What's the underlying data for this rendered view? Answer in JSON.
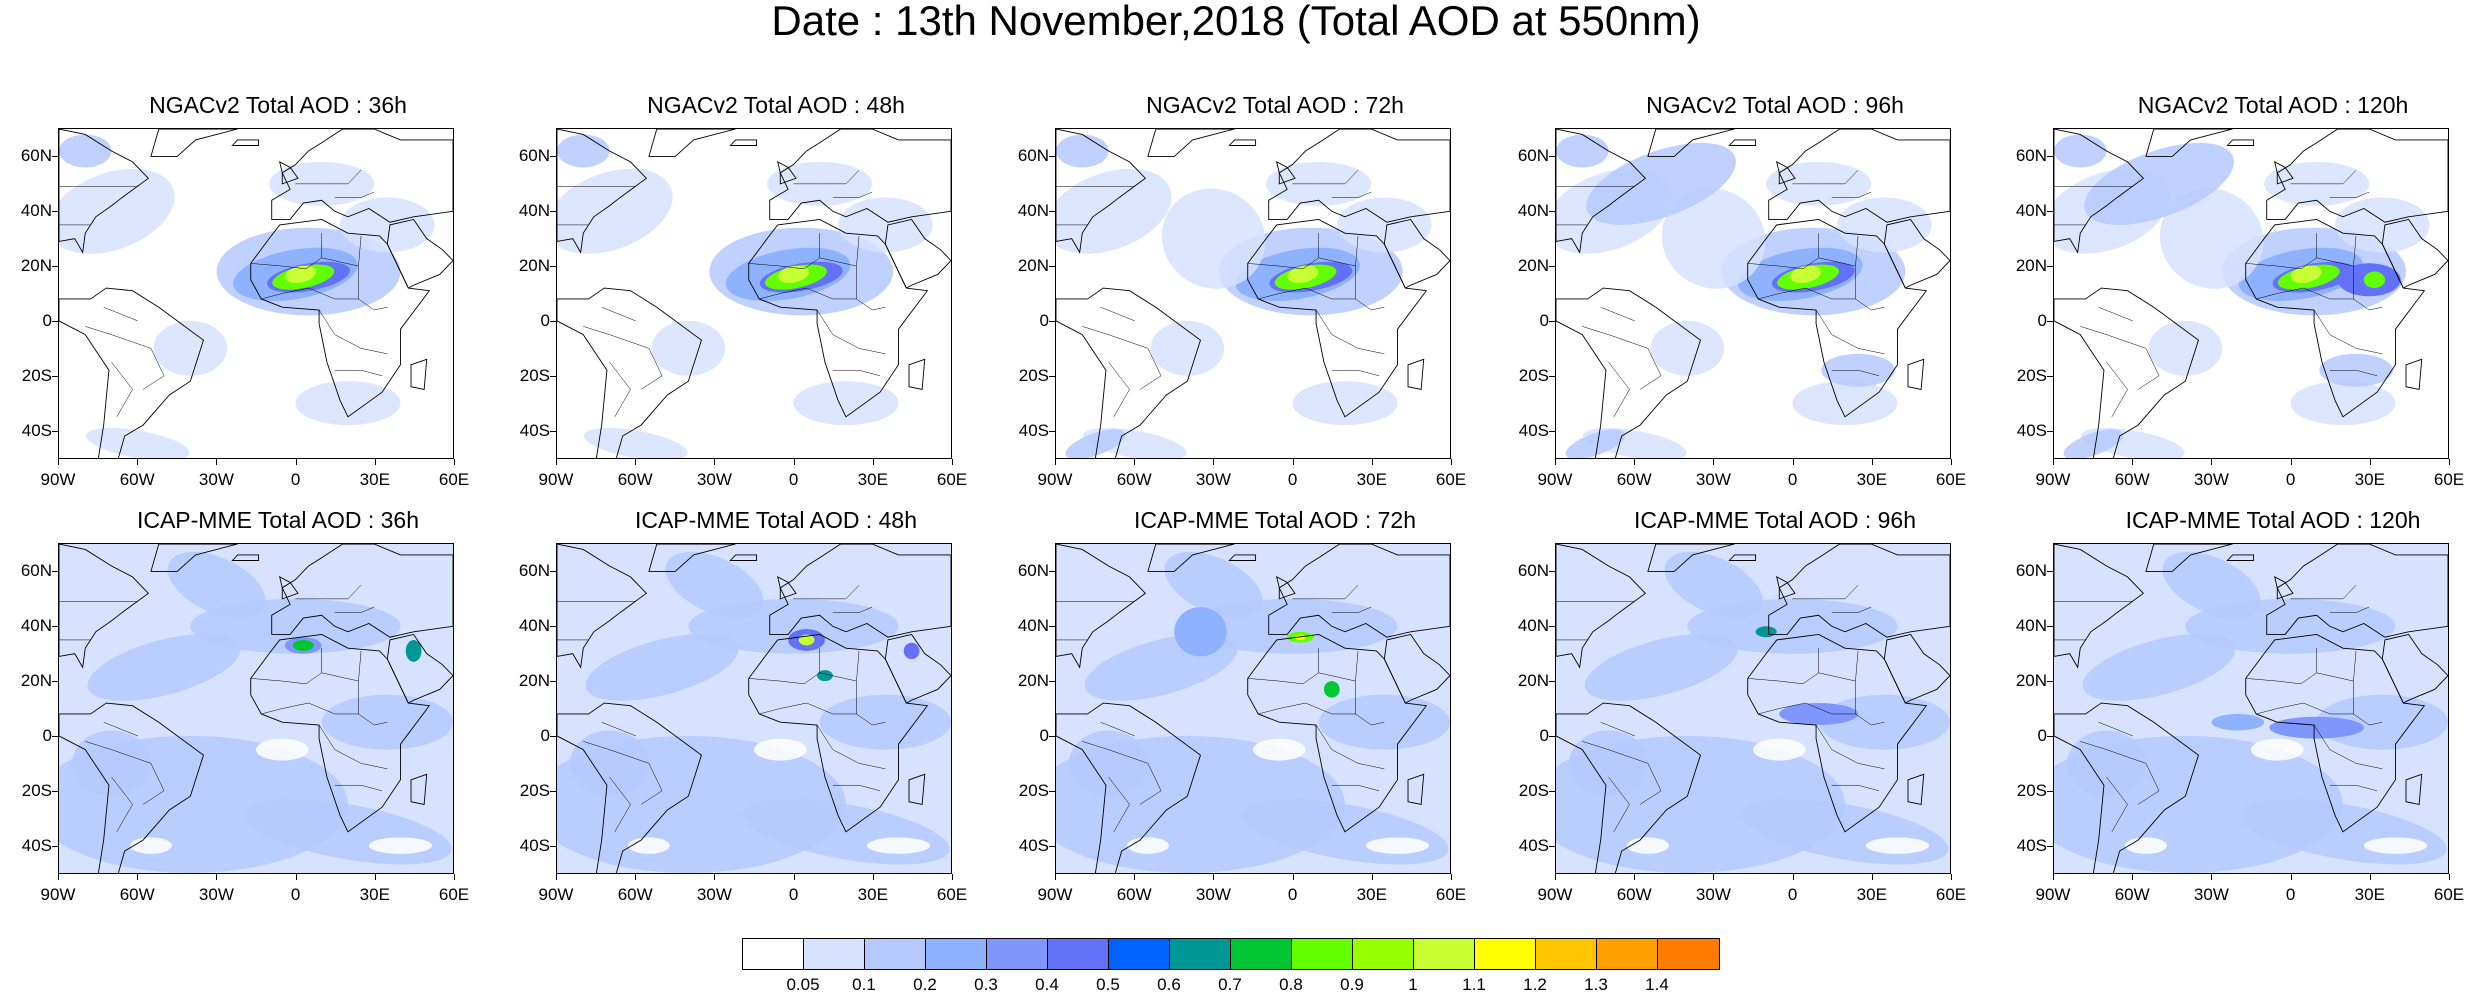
{
  "title": "Date : 13th November,2018 (Total AOD at 550nm)",
  "axes": {
    "lat_labels": [
      "60N",
      "40N",
      "20N",
      "0",
      "20S",
      "40S"
    ],
    "lon_labels": [
      "90W",
      "60W",
      "30W",
      "0",
      "30E",
      "60E"
    ],
    "lat_values": [
      60,
      40,
      20,
      0,
      -20,
      -40
    ],
    "lon_values": [
      -90,
      -60,
      -30,
      0,
      30,
      60
    ],
    "lat_range": [
      -50,
      70
    ],
    "lon_range": [
      -90,
      60
    ]
  },
  "panels": [
    {
      "title": "NGACv2 Total AOD : 36h",
      "model": "ngac",
      "lead": 36
    },
    {
      "title": "NGACv2 Total AOD : 48h",
      "model": "ngac",
      "lead": 48
    },
    {
      "title": "NGACv2 Total AOD : 72h",
      "model": "ngac",
      "lead": 72
    },
    {
      "title": "NGACv2 Total AOD : 96h",
      "model": "ngac",
      "lead": 96
    },
    {
      "title": "NGACv2 Total AOD : 120h",
      "model": "ngac",
      "lead": 120
    },
    {
      "title": "ICAP-MME Total AOD : 36h",
      "model": "icap",
      "lead": 36
    },
    {
      "title": "ICAP-MME Total AOD : 48h",
      "model": "icap",
      "lead": 48
    },
    {
      "title": "ICAP-MME Total AOD : 72h",
      "model": "icap",
      "lead": 72
    },
    {
      "title": "ICAP-MME Total AOD : 96h",
      "model": "icap",
      "lead": 96
    },
    {
      "title": "ICAP-MME Total AOD : 120h",
      "model": "icap",
      "lead": 120
    }
  ],
  "colorbar": {
    "labels": [
      "0.05",
      "0.1",
      "0.2",
      "0.3",
      "0.4",
      "0.5",
      "0.6",
      "0.7",
      "0.8",
      "0.9",
      "1",
      "1.1",
      "1.2",
      "1.3",
      "1.4"
    ],
    "colors": [
      "#ffffff",
      "#d6e2ff",
      "#b5c9ff",
      "#8eb2ff",
      "#7f96ff",
      "#6370f8",
      "#0062ff",
      "#009696",
      "#00c633",
      "#63ff00",
      "#96ff00",
      "#c6ff33",
      "#ffff00",
      "#ffc600",
      "#ffa000",
      "#ff7c00",
      "#ff1900"
    ]
  }
}
